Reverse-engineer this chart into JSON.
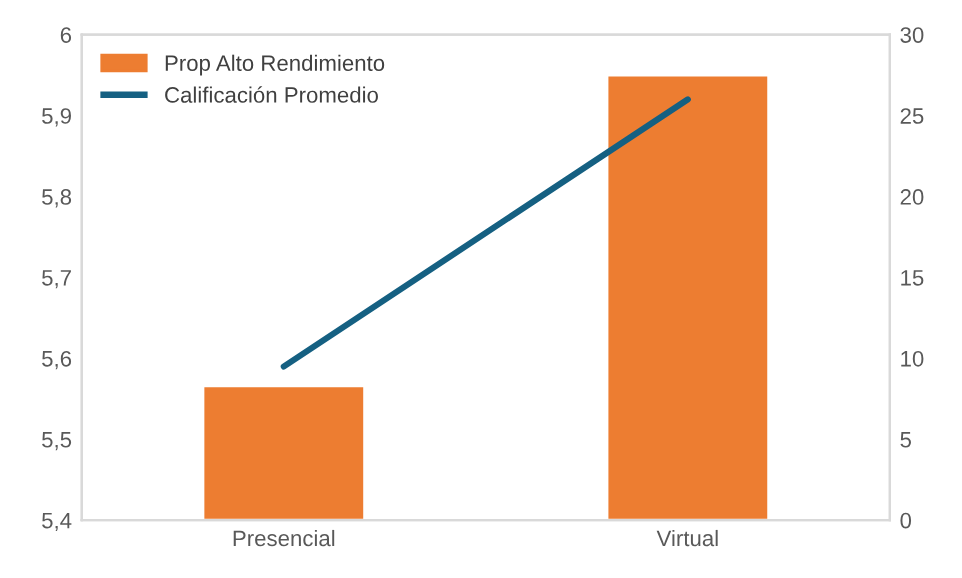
{
  "chart_data": {
    "type": "bar",
    "categories": [
      "Presencial",
      "Virtual"
    ],
    "series": [
      {
        "name": "Prop Alto Rendimiento",
        "axis": "y2",
        "color": "#ed7d31",
        "values": [
          8.3,
          27.5
        ]
      },
      {
        "name": "Calificación Promedio",
        "type": "line",
        "color": "#156082",
        "values": [
          5.59,
          5.92
        ]
      }
    ],
    "ylim": [
      5.4,
      6
    ],
    "yticks": [
      {
        "value": 5.4,
        "label": "5,4"
      },
      {
        "value": 5.5,
        "label": "5,5"
      },
      {
        "value": 5.6,
        "label": "5,6"
      },
      {
        "value": 5.7,
        "label": "5,7"
      },
      {
        "value": 5.8,
        "label": "5,8"
      },
      {
        "value": 5.9,
        "label": "5,9"
      },
      6
    ],
    "y2lim": [
      0,
      30
    ],
    "y2ticks": [
      0,
      5,
      10,
      15,
      20,
      25,
      30
    ],
    "legend": "top left",
    "grid": false,
    "marker": "none",
    "line_style": "solid"
  }
}
